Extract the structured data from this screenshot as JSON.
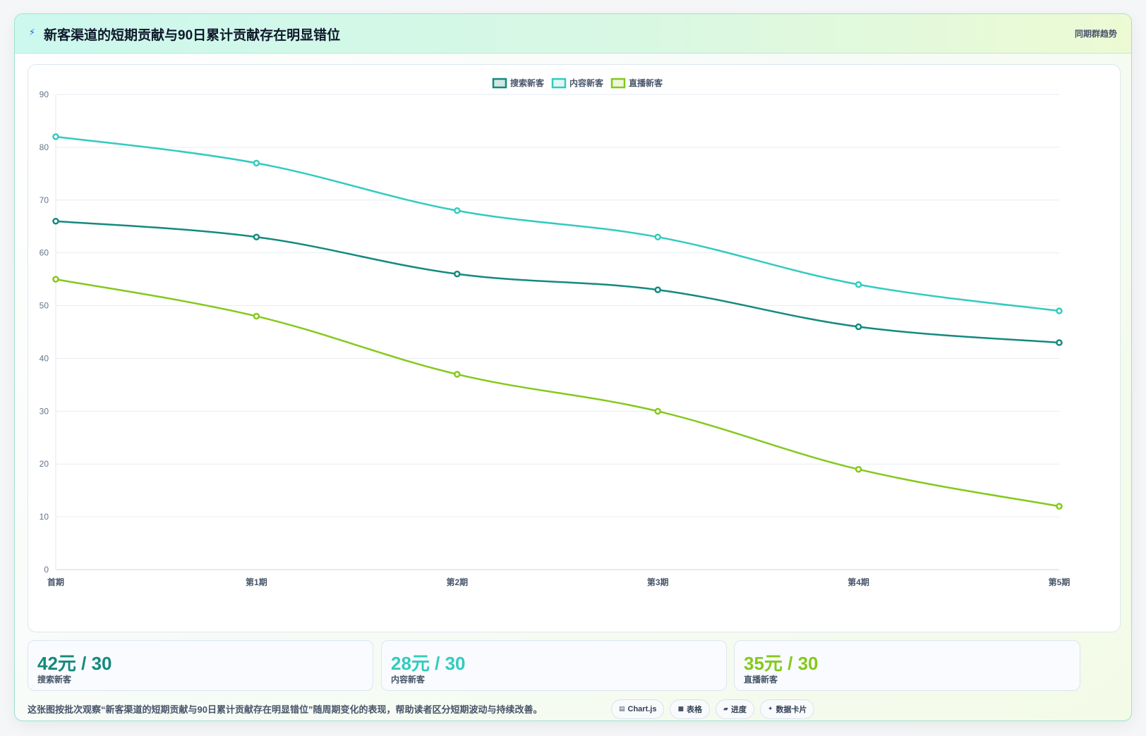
{
  "header": {
    "title": "新客渠道的短期贡献与90日累计贡献存在明显错位",
    "title_icon": "bolt-icon",
    "right_label": "同期群趋势"
  },
  "chart_data": {
    "type": "line",
    "categories": [
      "首期",
      "第1期",
      "第2期",
      "第3期",
      "第4期",
      "第5期"
    ],
    "ylim": [
      0,
      90
    ],
    "yticks": [
      0,
      10,
      20,
      30,
      40,
      50,
      60,
      70,
      80,
      90
    ],
    "grid": true,
    "legend_position": "top-center",
    "series": [
      {
        "name": "搜索新客",
        "color": "#138a7e",
        "values": [
          66,
          63,
          56,
          53,
          46,
          43
        ]
      },
      {
        "name": "内容新客",
        "color": "#33cbbf",
        "values": [
          82,
          77,
          68,
          63,
          54,
          49
        ]
      },
      {
        "name": "直播新客",
        "color": "#84c91c",
        "values": [
          55,
          48,
          37,
          30,
          19,
          12
        ]
      }
    ]
  },
  "stats": [
    {
      "value": "42元 / 30",
      "label": "搜索新客",
      "color": "#138a7e"
    },
    {
      "value": "28元 / 30",
      "label": "内容新客",
      "color": "#33cbbf"
    },
    {
      "value": "35元 / 30",
      "label": "直播新客",
      "color": "#84c91c"
    }
  ],
  "footer": {
    "description": "这张图按批次观察“新客渠道的短期贡献与90日累计贡献存在明显错位”随周期变化的表现，帮助读者区分短期波动与持续改善。",
    "chips": [
      {
        "icon": "chart-icon",
        "glyph": "▤",
        "label": "Chart.js"
      },
      {
        "icon": "table-icon",
        "glyph": "■",
        "label": "表格"
      },
      {
        "icon": "progress-icon",
        "glyph": "▰",
        "label": "进度"
      },
      {
        "icon": "card-icon",
        "glyph": "✦",
        "label": "数据卡片"
      }
    ]
  }
}
